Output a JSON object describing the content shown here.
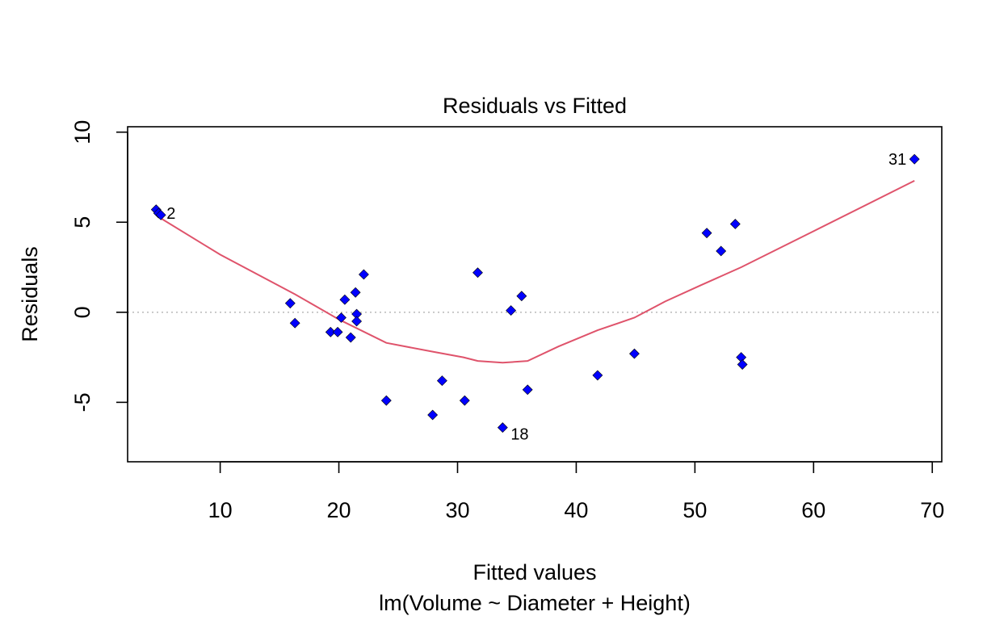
{
  "chart_data": {
    "type": "scatter",
    "title": "Residuals vs Fitted",
    "xlabel": "Fitted values",
    "subtitle": "lm(Volume ~ Diameter + Height)",
    "ylabel": "Residuals",
    "xlim": [
      2.2,
      70.8
    ],
    "ylim": [
      -8.3,
      10.3
    ],
    "x_ticks": [
      10,
      20,
      30,
      40,
      50,
      60,
      70
    ],
    "y_ticks": [
      -5,
      0,
      5,
      10
    ],
    "y_tick_labels": [
      "-5",
      "0",
      "5",
      "10"
    ],
    "grid": false,
    "reference_line": {
      "y": 0,
      "style": "dotted",
      "color": "#bebebe"
    },
    "point_color": "#0000ff",
    "smooth_color": "#df536b",
    "points": [
      {
        "x": 4.6,
        "y": 5.7
      },
      {
        "x": 4.8,
        "y": 5.5,
        "label": "2"
      },
      {
        "x": 5.0,
        "y": 5.4
      },
      {
        "x": 15.9,
        "y": 0.5
      },
      {
        "x": 16.3,
        "y": -0.6
      },
      {
        "x": 19.3,
        "y": -1.1
      },
      {
        "x": 19.9,
        "y": -1.1
      },
      {
        "x": 20.2,
        "y": -0.3
      },
      {
        "x": 20.5,
        "y": 0.7
      },
      {
        "x": 21.0,
        "y": -1.4
      },
      {
        "x": 21.4,
        "y": 1.1
      },
      {
        "x": 21.5,
        "y": -0.1
      },
      {
        "x": 21.5,
        "y": -0.5
      },
      {
        "x": 22.1,
        "y": 2.1
      },
      {
        "x": 24.0,
        "y": -4.9
      },
      {
        "x": 27.9,
        "y": -5.7
      },
      {
        "x": 28.7,
        "y": -3.8
      },
      {
        "x": 30.6,
        "y": -4.9
      },
      {
        "x": 31.7,
        "y": 2.2
      },
      {
        "x": 33.8,
        "y": -6.4,
        "label": "18"
      },
      {
        "x": 34.5,
        "y": 0.1
      },
      {
        "x": 35.4,
        "y": 0.9
      },
      {
        "x": 35.9,
        "y": -4.3
      },
      {
        "x": 41.8,
        "y": -3.5
      },
      {
        "x": 44.9,
        "y": -2.3
      },
      {
        "x": 51.0,
        "y": 4.4
      },
      {
        "x": 52.2,
        "y": 3.4
      },
      {
        "x": 53.4,
        "y": 4.9
      },
      {
        "x": 53.9,
        "y": -2.5
      },
      {
        "x": 54.0,
        "y": -2.9
      },
      {
        "x": 68.5,
        "y": 8.5,
        "label": "31"
      }
    ],
    "smooth": [
      {
        "x": 4.8,
        "y": 5.3
      },
      {
        "x": 10.0,
        "y": 3.2
      },
      {
        "x": 16.3,
        "y": 1.0
      },
      {
        "x": 20.0,
        "y": -0.4
      },
      {
        "x": 24.0,
        "y": -1.7
      },
      {
        "x": 28.0,
        "y": -2.2
      },
      {
        "x": 30.5,
        "y": -2.5
      },
      {
        "x": 31.7,
        "y": -2.7
      },
      {
        "x": 33.8,
        "y": -2.8
      },
      {
        "x": 35.9,
        "y": -2.7
      },
      {
        "x": 38.5,
        "y": -1.9
      },
      {
        "x": 41.8,
        "y": -1.0
      },
      {
        "x": 44.9,
        "y": -0.3
      },
      {
        "x": 47.5,
        "y": 0.6
      },
      {
        "x": 50.5,
        "y": 1.5
      },
      {
        "x": 53.9,
        "y": 2.5
      },
      {
        "x": 60.0,
        "y": 4.5
      },
      {
        "x": 68.5,
        "y": 7.3
      }
    ]
  }
}
